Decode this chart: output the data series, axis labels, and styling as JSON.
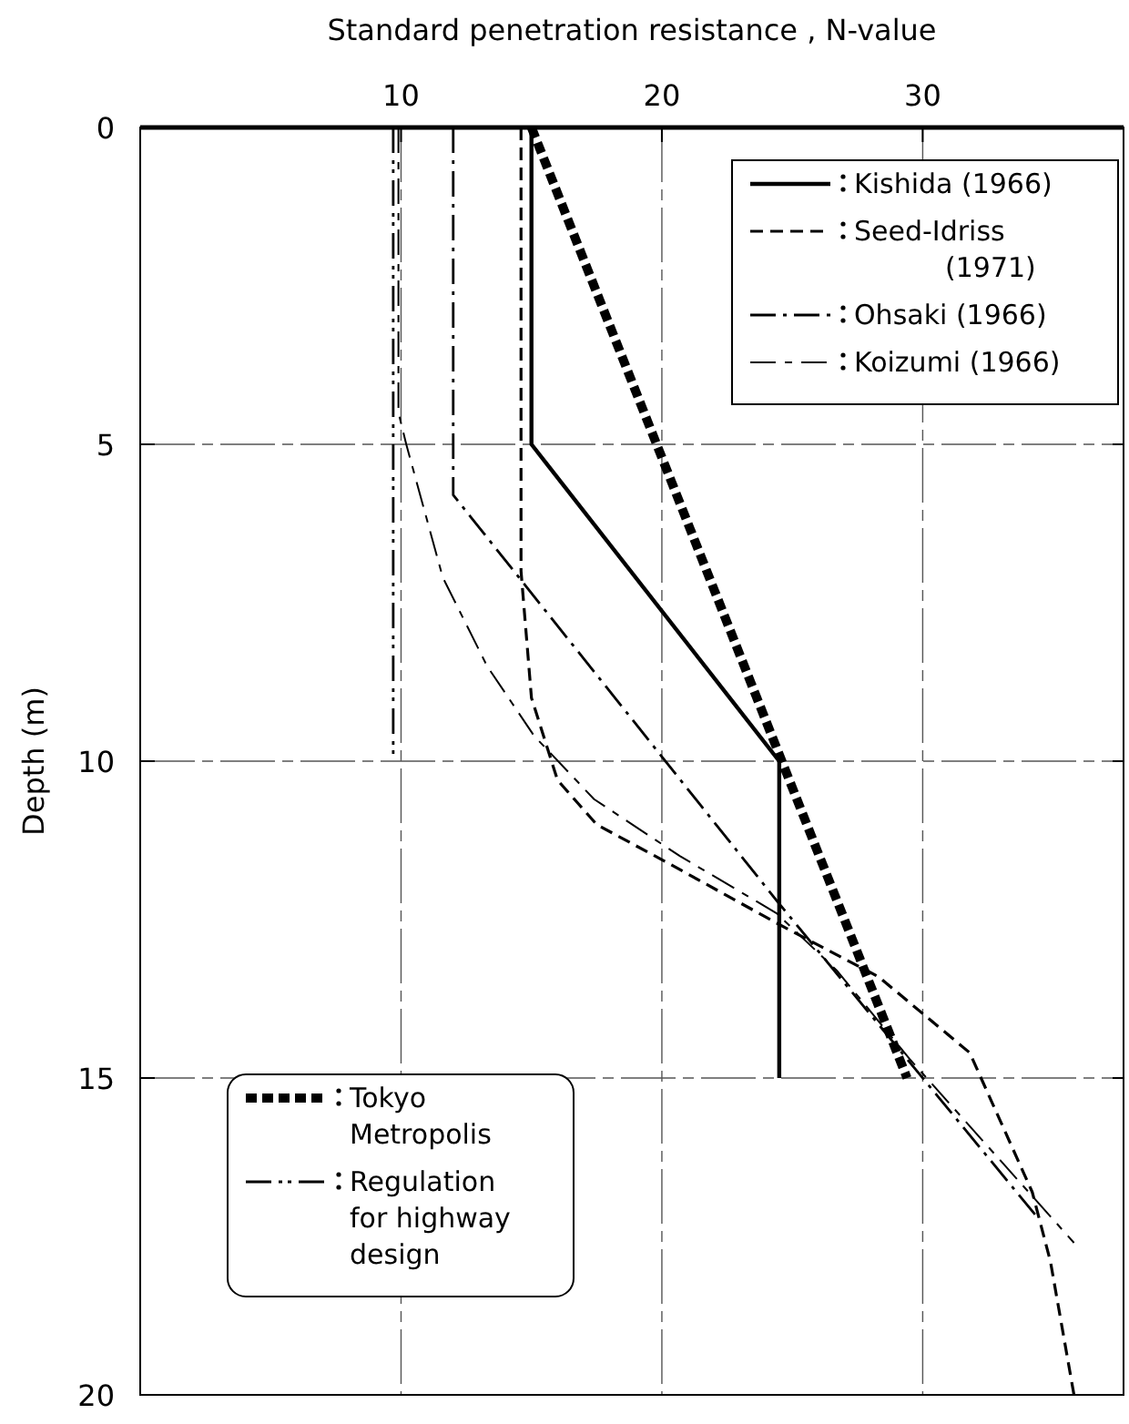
{
  "chart_data": {
    "type": "line",
    "xlabel": "Standard penetration resistance , N-value",
    "ylabel": "Depth  (m)",
    "xlim": [
      0,
      37.7
    ],
    "ylim": [
      20,
      0
    ],
    "xticks": [
      {
        "value": 0,
        "label": null
      },
      10,
      20,
      30
    ],
    "yticks": [
      0,
      5,
      10,
      15,
      20
    ],
    "grid": true,
    "legend": "top right",
    "series": [
      {
        "name": "Kishida (1966)",
        "color": "#000000",
        "line_style": "solid",
        "x": [
          15,
          15,
          24.5,
          24.5
        ],
        "values": [
          0,
          5,
          10,
          15
        ]
      },
      {
        "name": "Seed-Idriss (1971)",
        "color": "#000000",
        "line_style": "dashed",
        "x": [
          14.6,
          14.6,
          15.0,
          16.0,
          17.5,
          20.2,
          24.6,
          28.3,
          31.8,
          34.2,
          34.9,
          35.8
        ],
        "values": [
          0,
          7,
          9,
          10.3,
          11,
          11.6,
          12.6,
          13.4,
          14.6,
          16.8,
          17.9,
          20
        ]
      },
      {
        "name": "Ohsaki (1966)",
        "color": "#000000",
        "line_style": "dashed",
        "x": [
          12,
          12,
          24.4,
          34.4
        ],
        "values": [
          0,
          5.8,
          12.2,
          17.2
        ]
      },
      {
        "name": "Koizumi (1966)",
        "color": "#000000",
        "line_style": "dashed",
        "x": [
          9.9,
          9.9,
          10.2,
          11.6,
          13.3,
          15.1,
          17.4,
          20.7,
          24.4,
          26.7,
          29.5,
          35.8
        ],
        "values": [
          0,
          4.5,
          5.0,
          7.1,
          8.5,
          9.6,
          10.6,
          11.5,
          12.4,
          13.3,
          14.7,
          17.6
        ]
      },
      {
        "name": "Tokyo Metropolis",
        "color": "#000000",
        "line_style": "dashed",
        "x": [
          15,
          29.4
        ],
        "values": [
          0,
          15
        ]
      },
      {
        "name": "Regulation for highway design",
        "color": "#000000",
        "line_style": "dashed",
        "x": [
          9.7,
          9.7
        ],
        "values": [
          0,
          10
        ]
      }
    ]
  }
}
